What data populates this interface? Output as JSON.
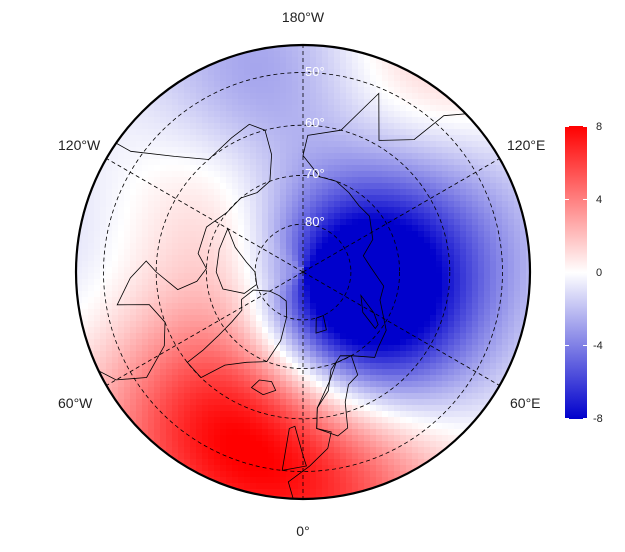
{
  "map": {
    "projection": "north-polar-stereographic",
    "variable_field_description": "diverging anomaly field",
    "longitude_labels": {
      "top": "180°W",
      "upper_left": "120°W",
      "upper_right": "120°E",
      "lower_left": "60°W",
      "lower_right": "60°E",
      "bottom": "0°"
    },
    "latitude_labels": [
      "50°",
      "60°",
      "70°",
      "80°"
    ],
    "latitude_circles": [
      50,
      60,
      70,
      80
    ],
    "meridians_deg": [
      0,
      60,
      120,
      180,
      240,
      300
    ],
    "anomaly_centers": [
      {
        "name": "north-atlantic-positive",
        "lon": -30,
        "lat": 55,
        "value": 6.5
      },
      {
        "name": "europe-positive",
        "lon": 10,
        "lat": 48,
        "value": 5.5
      },
      {
        "name": "barents-negative",
        "lon": 50,
        "lat": 73,
        "value": -7.5
      },
      {
        "name": "polar-negative",
        "lon": 110,
        "lat": 82,
        "value": -4.5
      },
      {
        "name": "siberia-negative",
        "lon": 110,
        "lat": 60,
        "value": -3
      },
      {
        "name": "pacific-negative",
        "lon": -170,
        "lat": 50,
        "value": -3.5
      },
      {
        "name": "canada-weak-positive",
        "lon": -120,
        "lat": 65,
        "value": 2
      },
      {
        "name": "asia-positive",
        "lon": 150,
        "lat": 45,
        "value": 2.5
      },
      {
        "name": "north-america-negative",
        "lon": -100,
        "lat": 45,
        "value": -1.5
      }
    ]
  },
  "colorbar": {
    "ticks": [
      "8",
      "4",
      "0",
      "-4",
      "-8"
    ],
    "min": -8,
    "max": 8,
    "colors": {
      "high": "#ff0000",
      "mid": "#ffffff",
      "low": "#0000cc"
    }
  }
}
